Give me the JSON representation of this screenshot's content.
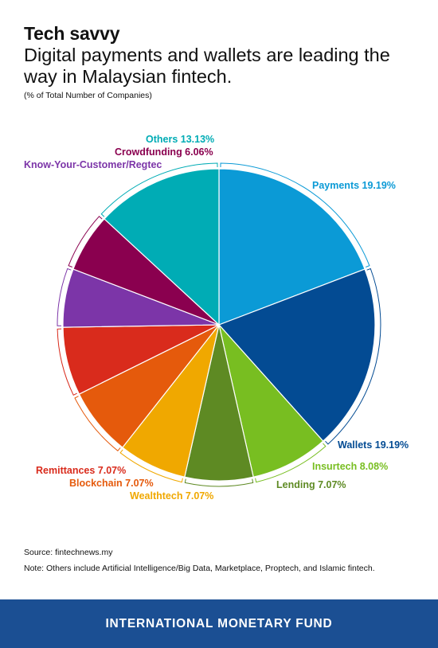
{
  "header": {
    "title": "Tech savvy",
    "subtitle": "Digital payments and wallets are leading the way in Malaysian fintech.",
    "unit_note": "(% of Total Number of Companies)"
  },
  "chart_data": {
    "type": "pie",
    "title": "Tech savvy",
    "subtitle": "Digital payments and wallets are leading the way in Malaysian fintech.",
    "unit": "% of Total Number of Companies",
    "slices": [
      {
        "label": "Payments",
        "display": "Payments 19.19%",
        "value": 19.19,
        "color": "#0b9ad6"
      },
      {
        "label": "Wallets",
        "display": "Wallets 19.19%",
        "value": 19.19,
        "color": "#034b93"
      },
      {
        "label": "Insurtech",
        "display": "Insurtech 8.08%",
        "value": 8.08,
        "color": "#78be21"
      },
      {
        "label": "Lending",
        "display": "Lending 7.07%",
        "value": 7.07,
        "color": "#5e8a23"
      },
      {
        "label": "Wealthtech",
        "display": "Wealthtech 7.07%",
        "value": 7.07,
        "color": "#f0a800"
      },
      {
        "label": "Blockchain",
        "display": "Blockchain 7.07%",
        "value": 7.07,
        "color": "#e55a0c"
      },
      {
        "label": "Remittances",
        "display": "Remittances 7.07%",
        "value": 7.07,
        "color": "#d92b1c"
      },
      {
        "label": "Know-Your-Customer/Regtech",
        "display": "Know-Your-Customer/Regtec",
        "value": 6.06,
        "color": "#7c35a8"
      },
      {
        "label": "Crowdfunding",
        "display": "Crowdfunding 6.06%",
        "value": 6.06,
        "color": "#8a004f"
      },
      {
        "label": "Others",
        "display": "Others 13.13%",
        "value": 13.13,
        "color": "#00acb5"
      }
    ]
  },
  "notes": {
    "source": "Source: fintechnews.my",
    "note": "Note: Others include Artificial Intelligence/Big Data, Marketplace, Proptech, and Islamic fintech."
  },
  "footer": {
    "org": "INTERNATIONAL MONETARY FUND"
  }
}
